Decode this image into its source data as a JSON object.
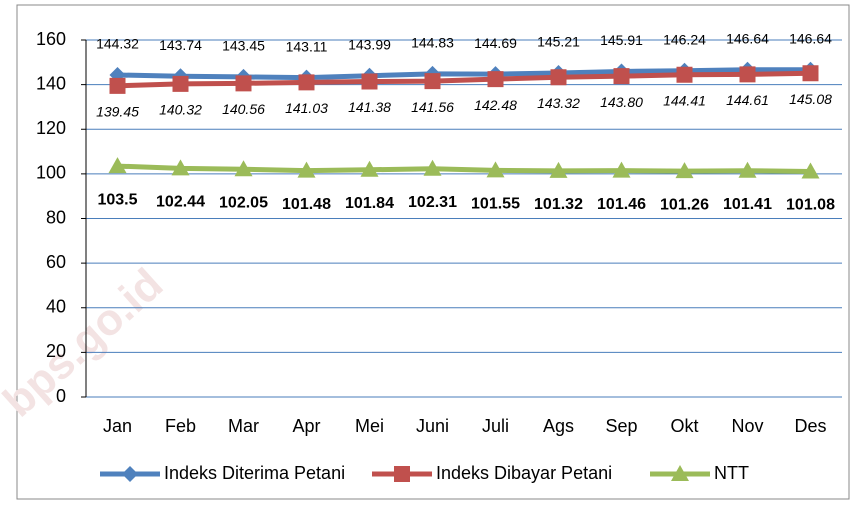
{
  "chart_data": {
    "type": "line",
    "watermark": "bps.go.id",
    "categories": [
      "Jan",
      "Feb",
      "Mar",
      "Apr",
      "Mei",
      "Juni",
      "Juli",
      "Ags",
      "Sep",
      "Okt",
      "Nov",
      "Des"
    ],
    "series": [
      {
        "name": "Indeks Diterima Petani",
        "color": "#4f81bd",
        "marker": "diamond",
        "values": [
          144.32,
          143.74,
          143.45,
          143.11,
          143.99,
          144.83,
          144.69,
          145.21,
          145.91,
          146.24,
          146.64,
          146.64
        ]
      },
      {
        "name": "Indeks Dibayar Petani",
        "color": "#c0504d",
        "marker": "square",
        "values": [
          139.45,
          140.32,
          140.56,
          141.03,
          141.38,
          141.56,
          142.48,
          143.32,
          143.8,
          144.41,
          144.61,
          145.08
        ],
        "value_labels": [
          "139.45",
          "140.32",
          "140.56",
          "141.03",
          "141.38",
          "141.56",
          "142.48",
          "143.32",
          "143.80",
          "144.41",
          "144.61",
          "145.08"
        ]
      },
      {
        "name": "NTT",
        "color": "#9bbb59",
        "marker": "triangle",
        "values": [
          103.5,
          102.44,
          102.05,
          101.48,
          101.84,
          102.31,
          101.55,
          101.32,
          101.46,
          101.26,
          101.41,
          101.08
        ]
      }
    ],
    "ylim": [
      0,
      160
    ],
    "yticks": [
      0,
      20,
      40,
      60,
      80,
      100,
      120,
      140,
      160
    ],
    "grid": true,
    "legend": "bottom"
  }
}
